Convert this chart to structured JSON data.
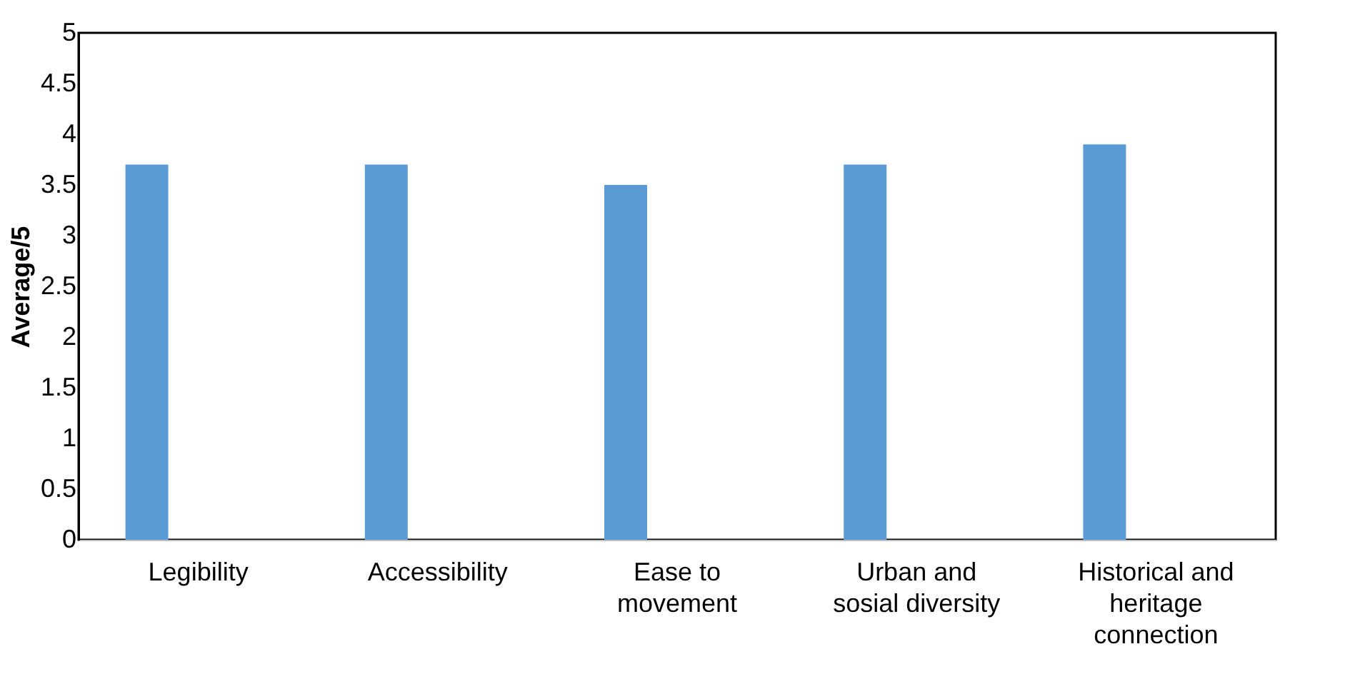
{
  "chart_data": {
    "type": "bar",
    "categories": [
      "Legibility",
      "Accessibility",
      "Ease to movement",
      "Urban and sosial diversity",
      "Historical and heritage connection"
    ],
    "values": [
      3.7,
      3.7,
      3.5,
      3.7,
      3.9
    ],
    "color": "#5b9bd5",
    "ylabel": "Average/5",
    "ylim": [
      0,
      5
    ],
    "yticks": [
      0,
      0.5,
      1,
      1.5,
      2,
      2.5,
      3,
      3.5,
      4,
      4.5,
      5
    ],
    "grid": false
  }
}
